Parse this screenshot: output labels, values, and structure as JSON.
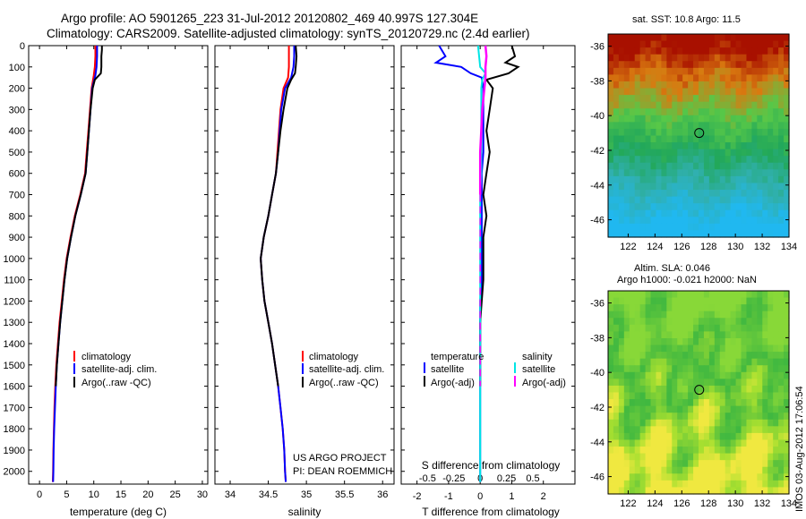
{
  "title_line1": "Argo profile: AO 5901265_223 31-Jul-2012 20120802_469 40.997S 127.304E",
  "title_line2": "Climatology: CARS2009. Satellite-adjusted climatology: synTS_20120729.nc (2.4d earlier)",
  "colors": {
    "clim": "#ff0000",
    "sat": "#0000ff",
    "argo": "#000000",
    "sat_s": "#00e5e5",
    "argo_s": "#ff00ff"
  },
  "legend_std": [
    "climatology",
    "satellite-adj. clim.",
    "Argo(..raw -QC)"
  ],
  "legend_diff": {
    "temperature": "temperature",
    "salinity": "salinity",
    "satellite": "satellite",
    "argo": "Argo(-adj)"
  },
  "credit": [
    "US ARGO PROJECT",
    "PI: DEAN ROEMMICH"
  ],
  "sst_title": "sat. SST: 10.8 Argo: 11.5",
  "sla_title": [
    "Altim. SLA: 0.046",
    "Argo h1000: -0.021 h2000: NaN"
  ],
  "footer_stamp": "IMOS 03-Aug-2012 17:06:54",
  "chart_data": [
    {
      "type": "line",
      "name": "temperature",
      "xlabel": "temperature (deg C)",
      "ylabel": "",
      "xlim": [
        -2,
        31
      ],
      "ylim": [
        2060,
        0
      ],
      "xticks": [
        "0",
        "5",
        "10",
        "15",
        "20",
        "25",
        "30"
      ],
      "yticks": [
        "0",
        "100",
        "200",
        "300",
        "400",
        "500",
        "600",
        "700",
        "800",
        "900",
        "1000",
        "1100",
        "1200",
        "1300",
        "1400",
        "1500",
        "1600",
        "1700",
        "1800",
        "1900",
        "2000"
      ],
      "series": [
        {
          "name": "climatology",
          "color": "red",
          "depth": [
            0,
            50,
            100,
            140,
            200,
            300,
            400,
            500,
            600,
            700,
            800,
            900,
            1000,
            1100,
            1200,
            1300,
            1400,
            1500,
            1600,
            1700,
            1800,
            1900,
            2000,
            2050
          ],
          "values": [
            10.3,
            10.3,
            10.2,
            10.0,
            9.6,
            9.3,
            9.0,
            8.7,
            8.4,
            7.5,
            6.5,
            5.7,
            5.0,
            4.5,
            4.1,
            3.7,
            3.4,
            3.1,
            2.9,
            2.75,
            2.65,
            2.55,
            2.5,
            2.45
          ]
        },
        {
          "name": "satellite-adj. clim.",
          "color": "blue",
          "depth": [
            0,
            50,
            100,
            140,
            200,
            300,
            400,
            500,
            600,
            700,
            800,
            900,
            1000,
            1100,
            1200,
            1300,
            1400,
            1500,
            1600,
            1700,
            1800,
            1900,
            2000,
            2050
          ],
          "values": [
            10.6,
            10.6,
            10.5,
            10.3,
            9.7,
            9.4,
            9.1,
            8.8,
            8.5,
            7.6,
            6.6,
            5.8,
            5.1,
            4.6,
            4.2,
            3.8,
            3.5,
            3.2,
            3.0,
            2.85,
            2.7,
            2.6,
            2.55,
            2.5
          ]
        },
        {
          "name": "Argo(..raw -QC)",
          "color": "black",
          "depth": [
            0,
            20,
            50,
            100,
            130,
            160,
            200,
            300,
            400,
            500,
            600,
            700,
            800,
            900,
            1000,
            1100,
            1200,
            1300,
            1400,
            1500,
            1600
          ],
          "values": [
            11.5,
            11.5,
            11.4,
            11.4,
            11.3,
            10.2,
            9.8,
            9.4,
            9.1,
            8.8,
            8.5,
            7.6,
            6.6,
            5.8,
            5.1,
            4.6,
            4.2,
            3.8,
            3.5,
            3.2,
            3.0
          ]
        }
      ]
    },
    {
      "type": "line",
      "name": "salinity",
      "xlabel": "salinity",
      "ylabel": "",
      "xlim": [
        33.8,
        36.15
      ],
      "ylim": [
        2060,
        0
      ],
      "xticks": [
        "34",
        "34.5",
        "35",
        "35.5",
        "36"
      ],
      "series": [
        {
          "name": "climatology",
          "color": "red",
          "depth": [
            0,
            50,
            100,
            150,
            200,
            300,
            400,
            500,
            600,
            700,
            800,
            900,
            1000,
            1100,
            1200,
            1300,
            1400,
            1500,
            1600,
            1700,
            1800,
            1900,
            2000,
            2050
          ],
          "values": [
            34.77,
            34.77,
            34.77,
            34.76,
            34.7,
            34.66,
            34.64,
            34.62,
            34.6,
            34.55,
            34.5,
            34.44,
            34.4,
            34.42,
            34.45,
            34.5,
            34.55,
            34.59,
            34.63,
            34.66,
            34.69,
            34.71,
            34.72,
            34.73
          ]
        },
        {
          "name": "satellite-adj. clim.",
          "color": "blue",
          "depth": [
            0,
            50,
            100,
            150,
            200,
            300,
            400,
            500,
            600,
            700,
            800,
            900,
            1000,
            1100,
            1200,
            1300,
            1400,
            1500,
            1600,
            1700,
            1800,
            1900,
            2000,
            2050
          ],
          "values": [
            34.84,
            34.84,
            34.83,
            34.8,
            34.72,
            34.67,
            34.65,
            34.63,
            34.6,
            34.55,
            34.5,
            34.44,
            34.4,
            34.42,
            34.45,
            34.5,
            34.55,
            34.59,
            34.63,
            34.66,
            34.69,
            34.71,
            34.72,
            34.73
          ]
        },
        {
          "name": "Argo(..raw -QC)",
          "color": "black",
          "depth": [
            0,
            50,
            100,
            130,
            160,
            200,
            300,
            400,
            500,
            600,
            700,
            800,
            900,
            1000,
            1100,
            1200,
            1300,
            1400,
            1500,
            1600
          ],
          "values": [
            34.86,
            34.87,
            34.86,
            34.85,
            34.8,
            34.75,
            34.7,
            34.66,
            34.63,
            34.6,
            34.55,
            34.5,
            34.44,
            34.4,
            34.42,
            34.45,
            34.5,
            34.55,
            34.59,
            34.63
          ]
        }
      ]
    },
    {
      "type": "line",
      "name": "difference from climatology",
      "xlabel": "T difference from climatology",
      "x2label": "S difference from climatology",
      "xlim": [
        -2.5,
        3
      ],
      "x2lim": [
        -0.75,
        0.9
      ],
      "ylim": [
        2060,
        0
      ],
      "xticks": [
        "-2",
        "-1",
        "0",
        "1",
        "2"
      ],
      "x2ticks": [
        "-0.5",
        "-0.25",
        "0",
        "0.25",
        "0.5"
      ],
      "series": [
        {
          "name": "T satellite",
          "color": "blue",
          "axis": "T",
          "depth": [
            0,
            50,
            80,
            100,
            130,
            150,
            200,
            300,
            400,
            500,
            600,
            700,
            800,
            900,
            1000,
            1100,
            1200,
            1300,
            1400,
            1600,
            2000,
            2050
          ],
          "values": [
            -1.3,
            -1.1,
            -1.4,
            -0.6,
            -0.3,
            0.05,
            0.1,
            0.1,
            0.1,
            0.1,
            0.05,
            0.05,
            0.05,
            0.05,
            0.05,
            0.05,
            0.0,
            0.0,
            0.0,
            0.0,
            0.0,
            0.0
          ]
        },
        {
          "name": "T Argo(-adj)",
          "color": "black",
          "axis": "T",
          "depth": [
            0,
            50,
            80,
            100,
            130,
            160,
            200,
            300,
            400,
            500,
            600,
            700,
            800,
            900,
            1000,
            1100,
            1200,
            1300,
            1400,
            1500,
            1600
          ],
          "values": [
            1.0,
            1.1,
            0.8,
            1.2,
            0.9,
            0.2,
            0.4,
            0.3,
            0.2,
            0.3,
            0.2,
            0.1,
            0.2,
            0.1,
            0.1,
            0.1,
            0.05,
            0.0,
            0.0,
            0.0,
            0.0
          ]
        },
        {
          "name": "S satellite",
          "color": "cyan",
          "axis": "S",
          "depth": [
            0,
            50,
            100,
            130,
            160,
            200,
            300,
            400,
            500,
            600,
            700,
            800,
            900,
            1000,
            1100,
            1200,
            1300,
            1400,
            1600,
            2000,
            2050
          ],
          "values": [
            -0.02,
            -0.01,
            0.0,
            0.05,
            0.02,
            0.01,
            0.01,
            0.01,
            0.01,
            0.01,
            0.0,
            0.0,
            0.0,
            0.0,
            0.0,
            0.0,
            0.0,
            0.0,
            0.0,
            0.0,
            0.0
          ]
        },
        {
          "name": "S Argo(-adj)",
          "color": "magenta",
          "axis": "S",
          "depth": [
            0,
            50,
            100,
            150,
            200,
            300,
            400,
            500,
            600,
            700,
            800,
            900,
            1000,
            1100,
            1200,
            1300,
            1400,
            1500,
            1600
          ],
          "values": [
            0.05,
            0.06,
            0.05,
            0.05,
            0.04,
            0.02,
            0.01,
            0.0,
            0.0,
            0.0,
            0.0,
            0.0,
            0.0,
            0.0,
            0.0,
            0.0,
            0.0,
            0.0,
            0.0
          ],
          "dashed_from_depth": 700
        }
      ]
    },
    {
      "type": "heatmap",
      "name": "satellite SST map",
      "xlim": [
        120.5,
        134
      ],
      "ylim": [
        -47,
        -35.3
      ],
      "xticks": [
        "122",
        "124",
        "126",
        "128",
        "130",
        "132",
        "134"
      ],
      "yticks": [
        "-36",
        "-38",
        "-40",
        "-42",
        "-44",
        "-46"
      ],
      "marker": {
        "lon": 127.3,
        "lat": -41.0
      },
      "bands": [
        {
          "lat": -36,
          "color": "#a81000"
        },
        {
          "lat": -38,
          "color": "#d97a10"
        },
        {
          "lat": -40,
          "color": "#58c848"
        },
        {
          "lat": -42,
          "color": "#22a85a"
        },
        {
          "lat": -44,
          "color": "#30b0b0"
        },
        {
          "lat": -46,
          "color": "#20b8f0"
        }
      ]
    },
    {
      "type": "heatmap",
      "name": "altimeter SLA map",
      "xlim": [
        120.5,
        134
      ],
      "ylim": [
        -47,
        -35.3
      ],
      "xticks": [
        "122",
        "124",
        "126",
        "128",
        "130",
        "132",
        "134"
      ],
      "yticks": [
        "-36",
        "-38",
        "-40",
        "-42",
        "-44",
        "-46"
      ],
      "marker": {
        "lon": 127.3,
        "lat": -41.0
      },
      "bands": [
        {
          "lat": -36,
          "color": "#88d838"
        },
        {
          "lat": -40,
          "color": "#40b840"
        },
        {
          "lat": -44,
          "color": "#a8e030"
        },
        {
          "lat": -46,
          "color": "#f0e840"
        }
      ]
    }
  ]
}
